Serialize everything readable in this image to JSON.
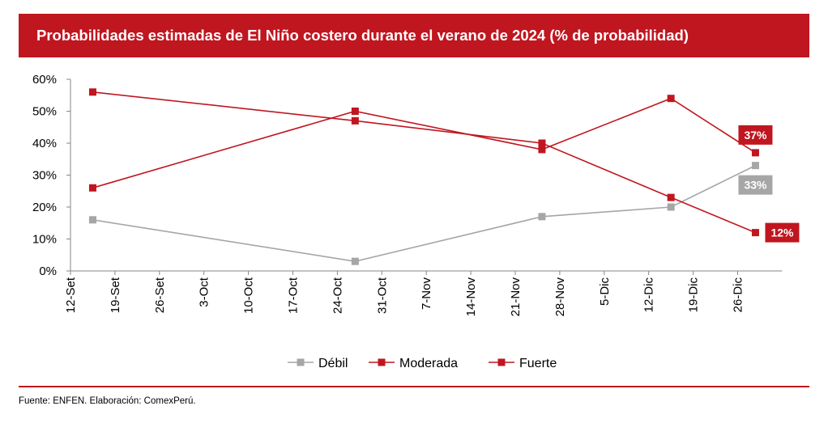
{
  "title": "Probabilidades estimadas de El Niño costero durante el verano de 2024 (% de probabilidad)",
  "source": "Fuente: ENFEN. Elaboración: ComexPerú.",
  "chart_data": {
    "type": "line",
    "x_ticks": [
      "12-Set",
      "19-Set",
      "26-Set",
      "3-Oct",
      "10-Oct",
      "17-Oct",
      "24-Oct",
      "31-Oct",
      "7-Nov",
      "14-Nov",
      "21-Nov",
      "28-Nov",
      "5-Dic",
      "12-Dic",
      "19-Dic",
      "26-Dic"
    ],
    "y_ticks": [
      "0%",
      "10%",
      "20%",
      "30%",
      "40%",
      "50%",
      "60%"
    ],
    "ylim": [
      0,
      60
    ],
    "grid": false,
    "legend_position": "bottom",
    "series": [
      {
        "name": "Débil",
        "color": "#a6a6a6",
        "x": [
          0.5,
          6.4,
          10.6,
          13.5,
          15.4
        ],
        "values": [
          16,
          3,
          17,
          20,
          33
        ]
      },
      {
        "name": "Moderada",
        "color": "#c0161f",
        "x": [
          0.5,
          6.4,
          10.6,
          13.5,
          15.4
        ],
        "values": [
          26,
          50,
          38,
          54,
          37
        ]
      },
      {
        "name": "Fuerte",
        "color": "#c0161f",
        "x": [
          0.5,
          6.4,
          10.6,
          13.5,
          15.4
        ],
        "values": [
          56,
          47,
          40,
          23,
          12
        ]
      }
    ],
    "annotations": [
      {
        "text": "37%",
        "series": "Moderada",
        "bg": "#c0161f",
        "fg": "#ffffff"
      },
      {
        "text": "33%",
        "series": "Débil",
        "bg": "#a6a6a6",
        "fg": "#ffffff"
      },
      {
        "text": "12%",
        "series": "Fuerte",
        "bg": "#c0161f",
        "fg": "#ffffff"
      }
    ]
  }
}
